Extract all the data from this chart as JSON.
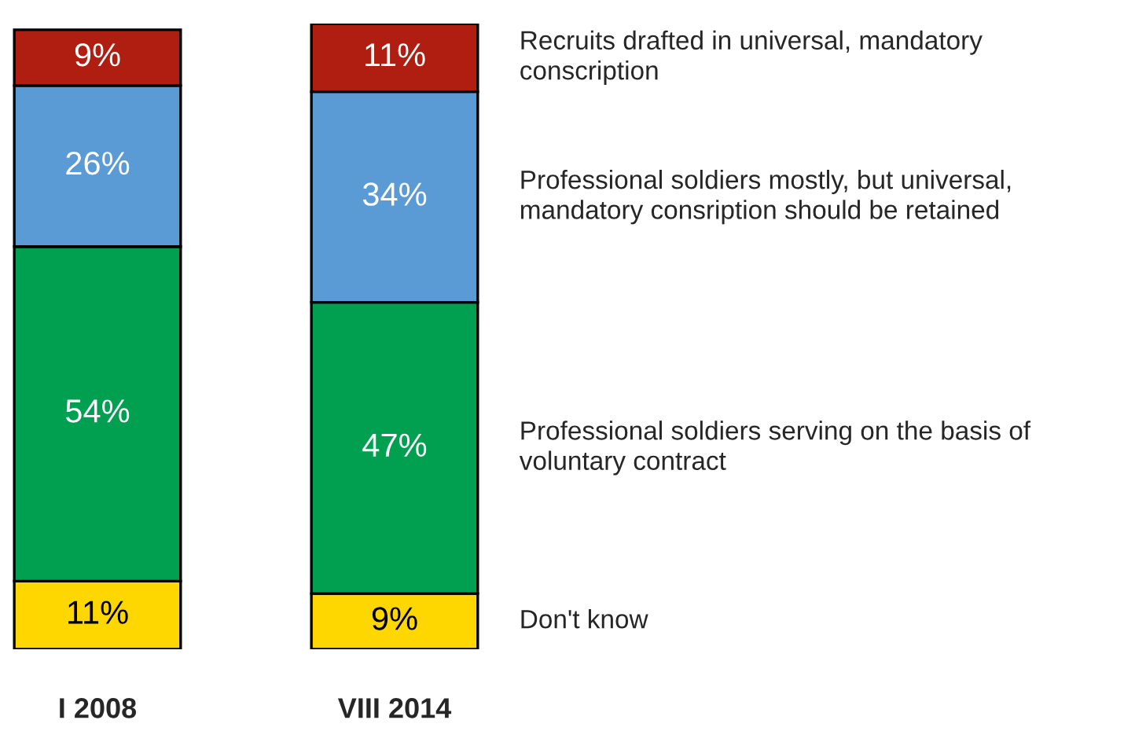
{
  "chart_data": {
    "type": "bar",
    "stacked": true,
    "categories": [
      "I 2008",
      "VIII 2014"
    ],
    "legend": "right",
    "grid": false,
    "series": [
      {
        "name": "Don't know",
        "color": "#ffd700",
        "values": [
          11,
          9
        ],
        "value_labels": [
          "11%",
          "9%"
        ]
      },
      {
        "name": "Professional soldiers serving on the basis of voluntary contract",
        "color": "#00a050",
        "values": [
          54,
          47
        ],
        "value_labels": [
          "54%",
          "47%"
        ]
      },
      {
        "name": "Professional soldiers mostly, but universal, mandatory consription should be retained",
        "color": "#5b9bd5",
        "values": [
          26,
          34
        ],
        "value_labels": [
          "26%",
          "34%"
        ]
      },
      {
        "name": "Recruits drafted in universal, mandatory conscription",
        "color": "#b01e12",
        "values": [
          9,
          11
        ],
        "value_labels": [
          "9%",
          "11%"
        ]
      }
    ]
  }
}
